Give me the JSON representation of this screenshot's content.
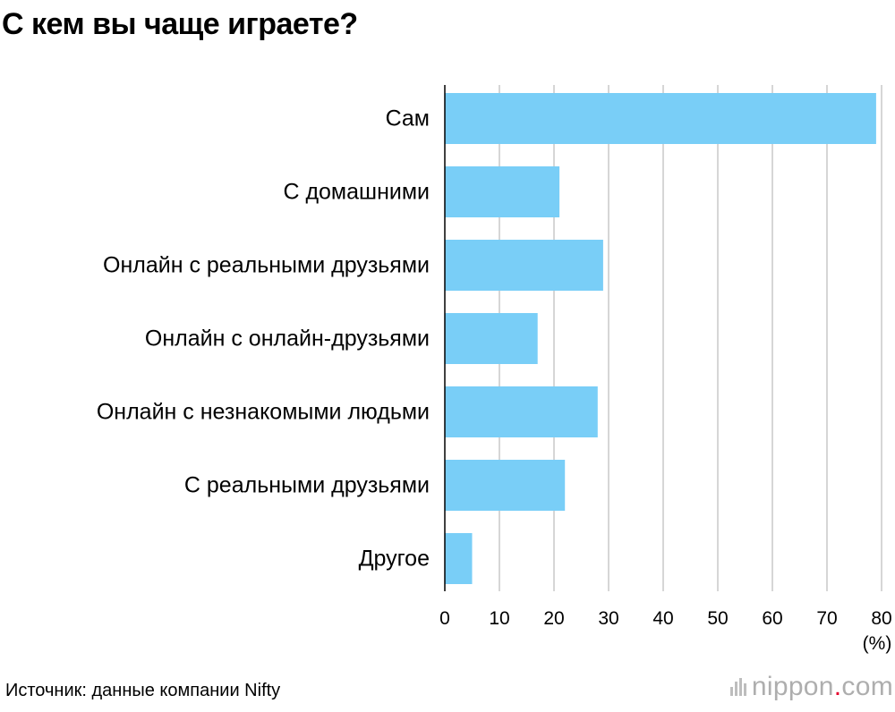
{
  "title": "С кем вы чаще играете?",
  "source": "Источник: данные компании Nifty",
  "brand": {
    "name": "nippon",
    "dot": ".",
    "tld": "com"
  },
  "colors": {
    "bar": "#79cef7",
    "grid": "#c8c8c8",
    "axis": "#000000",
    "brand_dot": "#e6002d"
  },
  "chart_data": {
    "type": "bar",
    "orientation": "horizontal",
    "title": "С кем вы чаще играете?",
    "categories": [
      "Сам",
      "С домашними",
      "Онлайн с реальными друзьями",
      "Онлайн с онлайн-друзьями",
      "Онлайн с незнакомыми людьми",
      "С реальными друзьями",
      "Другое"
    ],
    "values": [
      79,
      21,
      29,
      17,
      28,
      22,
      5
    ],
    "xlim": [
      0,
      80
    ],
    "xticks": [
      0,
      10,
      20,
      30,
      40,
      50,
      60,
      70,
      80
    ],
    "xunit": "(%)",
    "grid": true
  }
}
